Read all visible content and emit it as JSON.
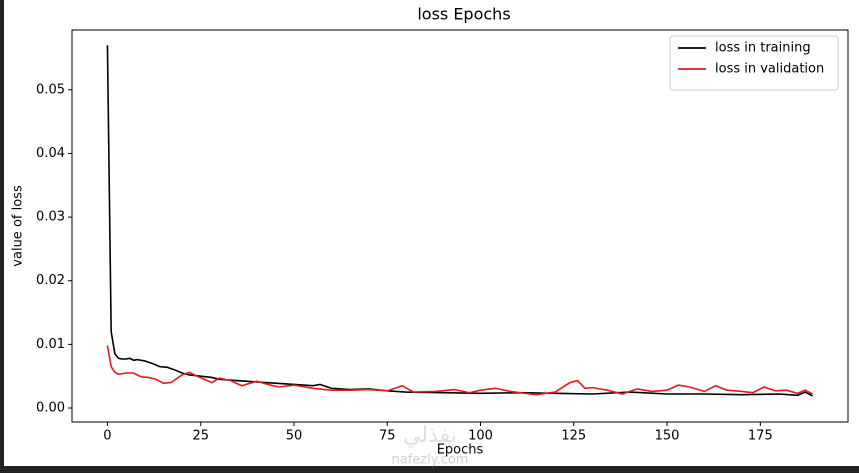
{
  "chart_data": {
    "type": "line",
    "title": "loss Epochs",
    "x_label": "Epochs",
    "y_label": "value of loss",
    "watermark": [
      "نفذلي",
      "nafezly.com"
    ],
    "legend": "upper right",
    "xlim": [
      -9.5,
      198.5
    ],
    "xticks": [
      0,
      25,
      50,
      75,
      100,
      125,
      150,
      175
    ],
    "ylim": [
      -0.0022,
      0.0594
    ],
    "yticks": [
      {
        "value": 0,
        "label": "0.00"
      },
      {
        "value": 0.01,
        "label": "0.01"
      },
      {
        "value": 0.02,
        "label": "0.02"
      },
      {
        "value": 0.03,
        "label": "0.03"
      },
      {
        "value": 0.04,
        "label": "0.04"
      },
      {
        "value": 0.05,
        "label": "0.05"
      }
    ],
    "series": [
      {
        "name": "loss in training",
        "color": "#000000",
        "x": [
          0,
          1,
          2,
          3,
          4,
          5,
          6,
          7,
          8,
          10,
          12,
          14,
          16,
          18,
          20,
          22,
          25,
          28,
          30,
          35,
          40,
          45,
          50,
          55,
          57,
          60,
          65,
          70,
          75,
          80,
          90,
          100,
          110,
          120,
          130,
          140,
          150,
          160,
          170,
          180,
          185,
          187,
          189
        ],
        "values": [
          0.057,
          0.012,
          0.0085,
          0.0078,
          0.0077,
          0.0077,
          0.0078,
          0.0075,
          0.0076,
          0.0074,
          0.007,
          0.0065,
          0.0064,
          0.006,
          0.0055,
          0.0052,
          0.005,
          0.0048,
          0.0045,
          0.0043,
          0.0041,
          0.0039,
          0.0037,
          0.0035,
          0.0037,
          0.0031,
          0.0029,
          0.003,
          0.0027,
          0.0025,
          0.0024,
          0.0023,
          0.0024,
          0.0023,
          0.0022,
          0.0025,
          0.0022,
          0.0022,
          0.0021,
          0.0022,
          0.002,
          0.0025,
          0.0019
        ]
      },
      {
        "name": "loss in validation",
        "color": "#e41a1c",
        "x": [
          0,
          1,
          2,
          3,
          5,
          7,
          9,
          11,
          13,
          15,
          17,
          20,
          22,
          24,
          26,
          28,
          30,
          33,
          36,
          40,
          43,
          46,
          50,
          55,
          60,
          65,
          70,
          75,
          79,
          82,
          88,
          93,
          97,
          100,
          104,
          108,
          112,
          115,
          120,
          124,
          126,
          128,
          130,
          134,
          138,
          142,
          146,
          150,
          153,
          156,
          160,
          163,
          166,
          170,
          173,
          176,
          179,
          182,
          185,
          187,
          189
        ],
        "values": [
          0.0098,
          0.0065,
          0.0056,
          0.0053,
          0.0055,
          0.0055,
          0.0049,
          0.0048,
          0.0045,
          0.0039,
          0.004,
          0.0052,
          0.0056,
          0.005,
          0.0045,
          0.004,
          0.0047,
          0.0043,
          0.0035,
          0.0042,
          0.0037,
          0.0033,
          0.0036,
          0.0031,
          0.0028,
          0.0028,
          0.0029,
          0.0027,
          0.0035,
          0.0025,
          0.0026,
          0.0029,
          0.0024,
          0.0028,
          0.0031,
          0.0026,
          0.0023,
          0.0021,
          0.0025,
          0.004,
          0.0043,
          0.0031,
          0.0032,
          0.0028,
          0.0022,
          0.003,
          0.0026,
          0.0028,
          0.0036,
          0.0033,
          0.0026,
          0.0035,
          0.0028,
          0.0026,
          0.0024,
          0.0033,
          0.0027,
          0.0028,
          0.0023,
          0.0028,
          0.0022
        ]
      }
    ]
  }
}
